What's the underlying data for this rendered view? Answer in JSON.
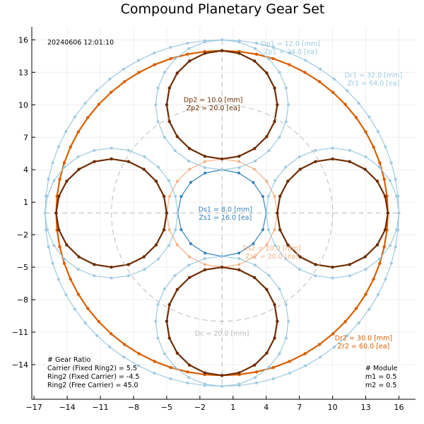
{
  "chart_data": {
    "type": "line",
    "title": "Compound Planetary Gear Set",
    "timestamp": "20240606 12:01:10",
    "xlim": [
      -17.2,
      17.5
    ],
    "ylim": [
      -17.2,
      17.2
    ],
    "xticks": [
      -17,
      -14,
      -11,
      -8,
      -5,
      -2,
      1,
      4,
      7,
      10,
      13,
      16
    ],
    "yticks": [
      -14,
      -11,
      -8,
      -5,
      -2,
      1,
      4,
      7,
      10,
      13,
      16
    ],
    "grid": true,
    "colors": {
      "light_blue": "#9ecae1",
      "blue": "#3182bd",
      "orange": "#d95f02",
      "dark_brown": "#6e2c00",
      "light_orange": "#f5b183",
      "gray": "#bbbbbb"
    },
    "gears": [
      {
        "name": "Ring1",
        "cx": 0,
        "cy": 0,
        "radius": 16,
        "teeth": 64,
        "color": "light_blue",
        "width": 1.2,
        "markers": true
      },
      {
        "name": "Ring2",
        "cx": 0,
        "cy": 0,
        "radius": 15,
        "teeth": 60,
        "color": "orange",
        "width": 2.2,
        "markers": true
      },
      {
        "name": "Sun1",
        "cx": 0,
        "cy": 0,
        "radius": 4,
        "teeth": 16,
        "color": "blue",
        "width": 1.2,
        "markers": true
      },
      {
        "name": "Sun2",
        "cx": 0,
        "cy": 0,
        "radius": 5,
        "teeth": 20,
        "color": "light_orange",
        "width": 1.2,
        "markers": true
      },
      {
        "name": "Planet1 top",
        "cx": 0,
        "cy": 10,
        "radius": 6,
        "teeth": 24,
        "color": "light_blue",
        "width": 1.2,
        "markers": true
      },
      {
        "name": "Planet1 right",
        "cx": 10,
        "cy": 0,
        "radius": 6,
        "teeth": 24,
        "color": "light_blue",
        "width": 1.2,
        "markers": true
      },
      {
        "name": "Planet1 bottom",
        "cx": 0,
        "cy": -10,
        "radius": 6,
        "teeth": 24,
        "color": "light_blue",
        "width": 1.2,
        "markers": true
      },
      {
        "name": "Planet1 left",
        "cx": -10,
        "cy": 0,
        "radius": 6,
        "teeth": 24,
        "color": "light_blue",
        "width": 1.2,
        "markers": true
      },
      {
        "name": "Planet2 top",
        "cx": 0,
        "cy": 10,
        "radius": 5,
        "teeth": 20,
        "color": "dark_brown",
        "width": 2.2,
        "markers": true
      },
      {
        "name": "Planet2 right",
        "cx": 10,
        "cy": 0,
        "radius": 5,
        "teeth": 20,
        "color": "dark_brown",
        "width": 2.2,
        "markers": true
      },
      {
        "name": "Planet2 bottom",
        "cx": 0,
        "cy": -10,
        "radius": 5,
        "teeth": 20,
        "color": "dark_brown",
        "width": 2.2,
        "markers": true
      },
      {
        "name": "Planet2 left",
        "cx": -10,
        "cy": 0,
        "radius": 5,
        "teeth": 20,
        "color": "dark_brown",
        "width": 2.2,
        "markers": true
      },
      {
        "name": "Carrier",
        "cx": 0,
        "cy": 0,
        "radius": 10,
        "teeth": 0,
        "color": "gray",
        "width": 1,
        "dashed": true
      }
    ],
    "annotations": [
      {
        "lines": [
          "Dp1 = 12.0 [mm]",
          "Zp1 = 24.0 [ea]"
        ],
        "x": 6.2,
        "y": 15.3,
        "color": "light_blue"
      },
      {
        "lines": [
          "Dr1 = 32.0 [mm]",
          "Zr1 = 64.0 [ea]"
        ],
        "x": 13.7,
        "y": 12.4,
        "color": "light_blue"
      },
      {
        "lines": [
          "Dp2 = 10.0 [mm]",
          "Zp2 = 20.0 [ea]"
        ],
        "x": -0.8,
        "y": 10.1,
        "color": "dark_brown"
      },
      {
        "lines": [
          "Ds1 = 8.0 [mm]",
          "Zs1 = 16.0 [ea]"
        ],
        "x": 0.3,
        "y": 0.0,
        "color": "blue"
      },
      {
        "lines": [
          "Ds2 = 10.0 [mm]",
          "Zs2 = 20.0 [ea]"
        ],
        "x": 4.5,
        "y": -3.6,
        "color": "light_orange"
      },
      {
        "lines": [
          "Dc = 20.0 [mm]"
        ],
        "x": 0.0,
        "y": -11.1,
        "color": "gray"
      },
      {
        "lines": [
          "Dr2 = 30.0 [mm]",
          "Zr2 = 60.0 [ea]"
        ],
        "x": 12.8,
        "y": -11.9,
        "color": "orange"
      }
    ],
    "gear_ratio": {
      "heading": "# Gear Ratio",
      "lines": [
        "Carrier (Fixed Ring2) = 5.5",
        "Ring2 (Fixed Carrier) = -4.5",
        "Ring2 (Free Carrier) = 45.0"
      ]
    },
    "module": {
      "heading": "# Module",
      "lines": [
        "m1 = 0.5",
        "m2 = 0.5"
      ]
    }
  }
}
